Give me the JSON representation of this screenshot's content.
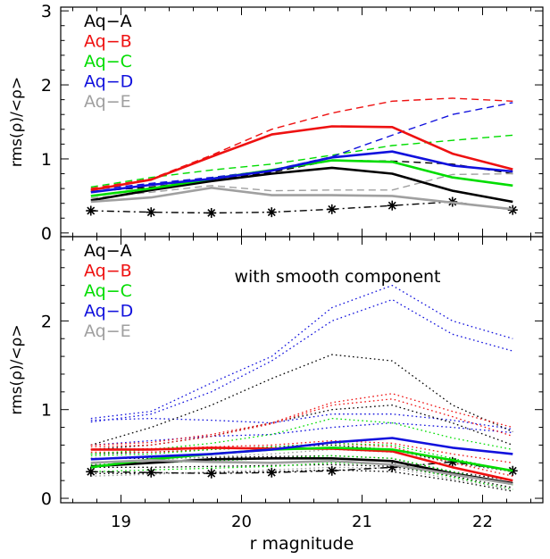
{
  "chart_data": [
    {
      "type": "line",
      "panel": "top",
      "xlabel": "",
      "ylabel": "rms(ρ)/<ρ>",
      "xlim": [
        18.5,
        22.5
      ],
      "ylim": [
        -0.05,
        3.05
      ],
      "yticks": [
        0,
        1,
        2,
        3
      ],
      "annotation": "",
      "x": [
        18.75,
        19.25,
        19.75,
        20.25,
        20.75,
        21.25,
        21.75,
        22.25
      ],
      "legend": [
        "Aq−A",
        "Aq−B",
        "Aq−C",
        "Aq−D",
        "Aq−E"
      ],
      "series": [
        {
          "name": "Aq−A",
          "color": "#000000",
          "style": "solid",
          "values": [
            0.44,
            0.58,
            0.7,
            0.8,
            0.88,
            0.8,
            0.57,
            0.42
          ]
        },
        {
          "name": "Aq−B",
          "color": "#ee1111",
          "style": "solid",
          "values": [
            0.58,
            0.72,
            1.03,
            1.33,
            1.44,
            1.43,
            1.07,
            0.86
          ]
        },
        {
          "name": "Aq−C",
          "color": "#00dd00",
          "style": "solid",
          "values": [
            0.5,
            0.6,
            0.73,
            0.85,
            0.98,
            0.96,
            0.75,
            0.64
          ]
        },
        {
          "name": "Aq−D",
          "color": "#1111dd",
          "style": "solid",
          "values": [
            0.55,
            0.65,
            0.73,
            0.84,
            1.02,
            1.1,
            0.91,
            0.83
          ]
        },
        {
          "name": "Aq−E",
          "color": "#a0a0a0",
          "style": "solid",
          "values": [
            0.42,
            0.48,
            0.61,
            0.51,
            0.51,
            0.5,
            0.41,
            0.32
          ]
        },
        {
          "name": "Aq−A",
          "color": "#000000",
          "style": "dashed",
          "values": [
            0.56,
            0.62,
            0.72,
            0.82,
            0.98,
            0.97,
            0.93,
            0.8
          ]
        },
        {
          "name": "Aq−B",
          "color": "#ee1111",
          "style": "dashed",
          "values": [
            0.6,
            0.73,
            1.05,
            1.4,
            1.62,
            1.78,
            1.82,
            1.78
          ]
        },
        {
          "name": "Aq−C",
          "color": "#00dd00",
          "style": "dashed",
          "values": [
            0.62,
            0.75,
            0.85,
            0.93,
            1.05,
            1.18,
            1.25,
            1.32
          ]
        },
        {
          "name": "Aq−D",
          "color": "#1111dd",
          "style": "dashed",
          "values": [
            0.58,
            0.67,
            0.75,
            0.85,
            1.03,
            1.32,
            1.6,
            1.76
          ]
        },
        {
          "name": "Aq−E",
          "color": "#a0a0a0",
          "style": "dashed",
          "values": [
            0.47,
            0.55,
            0.64,
            0.57,
            0.58,
            0.58,
            0.79,
            0.8
          ]
        },
        {
          "name": "",
          "color": "#000000",
          "style": "dashdot",
          "marker": "asterisk",
          "values": [
            0.3,
            0.28,
            0.27,
            0.28,
            0.32,
            0.37,
            0.42,
            0.31
          ]
        }
      ]
    },
    {
      "type": "line",
      "panel": "bottom",
      "xlabel": "r magnitude",
      "ylabel": "rms(ρ)/<ρ>",
      "xlim": [
        18.5,
        22.5
      ],
      "ylim": [
        -0.05,
        2.95
      ],
      "yticks": [
        0,
        1,
        2
      ],
      "xticks": [
        19,
        20,
        21,
        22
      ],
      "annotation": "with smooth component",
      "x": [
        18.75,
        19.25,
        19.75,
        20.25,
        20.75,
        21.25,
        21.75,
        22.25
      ],
      "legend": [
        "Aq−A",
        "Aq−B",
        "Aq−C",
        "Aq−D",
        "Aq−E"
      ],
      "series": [
        {
          "name": "Aq−A",
          "color": "#000000",
          "style": "solid",
          "values": [
            0.36,
            0.4,
            0.44,
            0.45,
            0.45,
            0.42,
            0.28,
            0.17
          ]
        },
        {
          "name": "Aq−B",
          "color": "#ee1111",
          "style": "solid",
          "values": [
            0.55,
            0.55,
            0.57,
            0.56,
            0.56,
            0.53,
            0.35,
            0.2
          ]
        },
        {
          "name": "Aq−C",
          "color": "#00dd00",
          "style": "solid",
          "values": [
            0.35,
            0.44,
            0.5,
            0.55,
            0.57,
            0.55,
            0.43,
            0.31
          ]
        },
        {
          "name": "Aq−D",
          "color": "#1111dd",
          "style": "solid",
          "values": [
            0.44,
            0.47,
            0.5,
            0.55,
            0.63,
            0.68,
            0.57,
            0.5
          ]
        },
        {
          "name": "Aq−E",
          "color": "#a0a0a0",
          "style": "solid",
          "values": [
            0.4,
            0.43,
            0.41,
            0.4,
            0.42,
            0.38,
            0.27,
            0.16
          ]
        },
        {
          "name": "",
          "color": "#000000",
          "style": "dashdot",
          "marker": "asterisk",
          "values": [
            0.3,
            0.29,
            0.28,
            0.29,
            0.31,
            0.35,
            0.41,
            0.31
          ]
        },
        {
          "name": "",
          "color": "#1111dd",
          "style": "dotted",
          "values": [
            0.9,
            0.98,
            1.3,
            1.6,
            2.15,
            2.4,
            2.0,
            1.8
          ]
        },
        {
          "name": "",
          "color": "#1111dd",
          "style": "dotted",
          "values": [
            0.86,
            0.95,
            1.2,
            1.55,
            2.0,
            2.24,
            1.85,
            1.66
          ]
        },
        {
          "name": "",
          "color": "#1111dd",
          "style": "dotted",
          "values": [
            0.6,
            0.65,
            0.7,
            0.72,
            0.8,
            0.85,
            0.8,
            0.74
          ]
        },
        {
          "name": "",
          "color": "#1111dd",
          "style": "dotted",
          "values": [
            0.88,
            0.9,
            0.88,
            0.85,
            0.95,
            0.95,
            0.88,
            0.78
          ]
        },
        {
          "name": "",
          "color": "#000000",
          "style": "dotted",
          "values": [
            0.6,
            0.8,
            1.05,
            1.35,
            1.62,
            1.55,
            1.05,
            0.75
          ]
        },
        {
          "name": "",
          "color": "#000000",
          "style": "dotted",
          "values": [
            0.55,
            0.6,
            0.7,
            0.85,
            1.0,
            1.05,
            0.85,
            0.6
          ]
        },
        {
          "name": "",
          "color": "#000000",
          "style": "dotted",
          "values": [
            0.5,
            0.52,
            0.55,
            0.58,
            0.6,
            0.55,
            0.4,
            0.3
          ]
        },
        {
          "name": "",
          "color": "#000000",
          "style": "dotted",
          "values": [
            0.45,
            0.45,
            0.46,
            0.47,
            0.48,
            0.45,
            0.3,
            0.2
          ]
        },
        {
          "name": "",
          "color": "#000000",
          "style": "dotted",
          "values": [
            0.35,
            0.35,
            0.36,
            0.37,
            0.38,
            0.36,
            0.25,
            0.12
          ]
        },
        {
          "name": "",
          "color": "#000000",
          "style": "dotted",
          "values": [
            0.28,
            0.28,
            0.29,
            0.3,
            0.32,
            0.3,
            0.2,
            0.08
          ]
        },
        {
          "name": "",
          "color": "#ee1111",
          "style": "dotted",
          "values": [
            0.6,
            0.63,
            0.72,
            0.85,
            1.08,
            1.18,
            0.98,
            0.8
          ]
        },
        {
          "name": "",
          "color": "#ee1111",
          "style": "dotted",
          "values": [
            0.58,
            0.6,
            0.7,
            0.84,
            1.05,
            1.12,
            0.92,
            0.7
          ]
        },
        {
          "name": "",
          "color": "#ee1111",
          "style": "dotted",
          "values": [
            0.55,
            0.56,
            0.58,
            0.6,
            0.65,
            0.62,
            0.5,
            0.4
          ]
        },
        {
          "name": "",
          "color": "#ee1111",
          "style": "dotted",
          "values": [
            0.52,
            0.52,
            0.55,
            0.58,
            0.62,
            0.58,
            0.4,
            0.25
          ]
        },
        {
          "name": "",
          "color": "#00dd00",
          "style": "dotted",
          "values": [
            0.5,
            0.55,
            0.62,
            0.72,
            0.9,
            0.85,
            0.68,
            0.55
          ]
        },
        {
          "name": "",
          "color": "#00dd00",
          "style": "dotted",
          "values": [
            0.48,
            0.5,
            0.55,
            0.58,
            0.62,
            0.6,
            0.45,
            0.3
          ]
        },
        {
          "name": "",
          "color": "#00dd00",
          "style": "dotted",
          "values": [
            0.38,
            0.4,
            0.42,
            0.45,
            0.48,
            0.45,
            0.3,
            0.15
          ]
        },
        {
          "name": "",
          "color": "#00dd00",
          "style": "dotted",
          "values": [
            0.3,
            0.32,
            0.34,
            0.36,
            0.4,
            0.38,
            0.24,
            0.1
          ]
        },
        {
          "name": "",
          "color": "#a0a0a0",
          "style": "dotted",
          "values": [
            0.4,
            0.43,
            0.47,
            0.5,
            0.55,
            0.52,
            0.4,
            0.3
          ]
        },
        {
          "name": "",
          "color": "#a0a0a0",
          "style": "dotted",
          "values": [
            0.25,
            0.27,
            0.3,
            0.32,
            0.35,
            0.34,
            0.22,
            0.1
          ]
        }
      ]
    }
  ]
}
